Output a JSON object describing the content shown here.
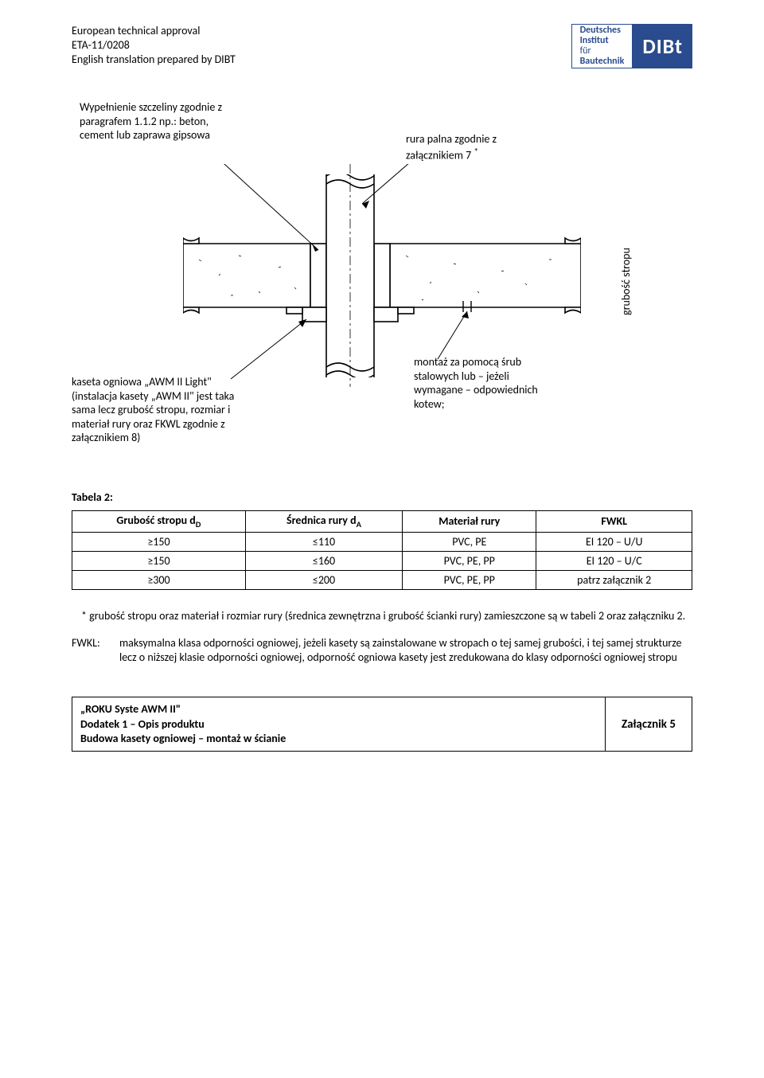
{
  "header": {
    "line1": "European technical approval",
    "line2": "ETA-11/0208",
    "line3": "English translation prepared by DIBT"
  },
  "logo": {
    "l1": "Deutsches",
    "l2": "Institut",
    "l3": "für",
    "l4": "Bautechnik",
    "acronym": "DIBt"
  },
  "diagram": {
    "label_topleft_l1": "Wypełnienie szczeliny zgodnie z",
    "label_topleft_l2": "paragrafem 1.1.2 np.: beton,",
    "label_topleft_l3": "cement lub zaprawa gipsowa",
    "label_topright_l1": "rura palna zgodnie z",
    "label_topright_l2": "załącznikiem 7",
    "label_topright_sup": "*",
    "label_right_vertical": "grubość stropu",
    "label_botleft_l1": "kaseta ogniowa „AWM II Light\"",
    "label_botleft_l2": "(instalacja kasety „AWM II\" jest taka",
    "label_botleft_l3": "sama lecz grubość stropu, rozmiar i",
    "label_botleft_l4": "materiał rury oraz FKWL zgodnie z",
    "label_botleft_l5": "załącznikiem 8)",
    "label_botright_l1": "montaż za pomocą śrub",
    "label_botright_l2": "stalowych lub – jeżeli",
    "label_botright_l3": "wymagane – odpowiednich",
    "label_botright_l4": "kotew;"
  },
  "table": {
    "title": "Tabela 2:",
    "columns": [
      "Grubość stropu d",
      "Średnica rury d",
      "Materiał rury",
      "FWKL"
    ],
    "col_sub": [
      "D",
      "A",
      "",
      ""
    ],
    "rows": [
      [
        "≥150",
        "≤110",
        "PVC, PE",
        "EI 120 – U/U"
      ],
      [
        "≥150",
        "≤160",
        "PVC, PE, PP",
        "EI 120 – U/C"
      ],
      [
        "≥300",
        "≤200",
        "PVC, PE, PP",
        "patrz załącznik 2"
      ]
    ]
  },
  "note": {
    "text": "*  grubość stropu oraz materiał i rozmiar rury (średnica zewnętrzna i grubość ścianki rury) zamieszczone są w tabeli 2 oraz załączniku 2."
  },
  "definition": {
    "label": "FWKL:",
    "text": "maksymalna klasa odporności ogniowej, jeżeli kasety są zainstalowane w stropach o tej samej grubości, i tej samej strukturze lecz o niższej klasie odporności ogniowej, odporność ogniowa kasety jest zredukowana do klasy odporności ogniowej stropu"
  },
  "footer": {
    "l1": "„ROKU Syste AWM II\"",
    "l2": "Dodatek 1 – Opis produktu",
    "l3": "Budowa kasety ogniowej – montaż w ścianie",
    "right": "Załącznik 5"
  }
}
